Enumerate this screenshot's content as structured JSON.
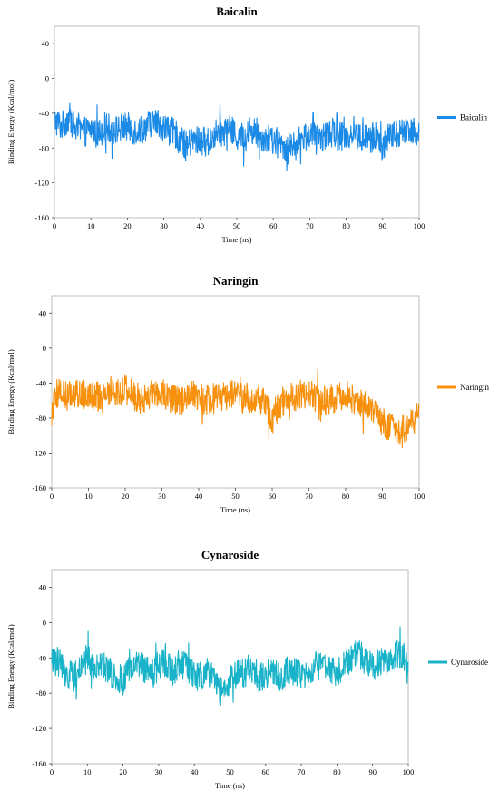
{
  "chart_data": [
    {
      "type": "line",
      "title": "Baicalin",
      "xlabel": "Time (ns)",
      "ylabel": "Binding Energy (Kcal/mol)",
      "xlim": [
        0,
        100
      ],
      "ylim": [
        -160,
        60
      ],
      "x_ticks": [
        "0",
        "10",
        "20",
        "30",
        "40",
        "50",
        "60",
        "70",
        "80",
        "90",
        "100"
      ],
      "y_ticks": [
        "40",
        "0",
        "-40",
        "-80",
        "-120",
        "-160"
      ],
      "grid": false,
      "legend_position": "right",
      "color": "#1a8ae6",
      "series": [
        {
          "name": "Baicalin",
          "x": [
            0,
            2,
            4,
            6,
            8,
            10,
            12,
            14,
            16,
            18,
            20,
            22,
            24,
            26,
            28,
            30,
            32,
            34,
            36,
            38,
            40,
            42,
            44,
            46,
            48,
            50,
            52,
            54,
            56,
            58,
            60,
            62,
            64,
            66,
            68,
            70,
            72,
            74,
            76,
            78,
            80,
            82,
            84,
            86,
            88,
            90,
            92,
            94,
            96,
            98,
            100
          ],
          "values": [
            -48,
            -55,
            -44,
            -60,
            -62,
            -58,
            -64,
            -55,
            -60,
            -57,
            -56,
            -60,
            -58,
            -52,
            -50,
            -56,
            -61,
            -66,
            -78,
            -72,
            -70,
            -74,
            -64,
            -62,
            -58,
            -66,
            -68,
            -60,
            -64,
            -70,
            -72,
            -76,
            -80,
            -78,
            -68,
            -64,
            -70,
            -66,
            -62,
            -66,
            -66,
            -64,
            -68,
            -70,
            -66,
            -78,
            -66,
            -64,
            -60,
            -58,
            -62
          ]
        }
      ]
    },
    {
      "type": "line",
      "title": "Naringin",
      "xlabel": "Time (ns)",
      "ylabel": "Binding Energy (Kcal/mol)",
      "xlim": [
        0,
        100
      ],
      "ylim": [
        -160,
        60
      ],
      "x_ticks": [
        "0",
        "10",
        "20",
        "30",
        "40",
        "50",
        "60",
        "70",
        "80",
        "90",
        "100"
      ],
      "y_ticks": [
        "40",
        "0",
        "-40",
        "-80",
        "-120",
        "-160"
      ],
      "grid": false,
      "legend_position": "right",
      "color": "#f7900d",
      "series": [
        {
          "name": "Naringin",
          "x": [
            0,
            2,
            4,
            6,
            8,
            10,
            12,
            14,
            16,
            18,
            20,
            22,
            24,
            26,
            28,
            30,
            32,
            34,
            36,
            38,
            40,
            42,
            44,
            46,
            48,
            50,
            52,
            54,
            56,
            58,
            60,
            62,
            64,
            66,
            68,
            70,
            72,
            74,
            76,
            78,
            80,
            82,
            84,
            86,
            88,
            90,
            92,
            94,
            96,
            98,
            100
          ],
          "values": [
            -72,
            -50,
            -56,
            -52,
            -54,
            -50,
            -56,
            -54,
            -48,
            -50,
            -46,
            -54,
            -58,
            -56,
            -52,
            -50,
            -56,
            -60,
            -62,
            -54,
            -56,
            -60,
            -58,
            -56,
            -54,
            -50,
            -58,
            -62,
            -56,
            -64,
            -82,
            -64,
            -58,
            -56,
            -52,
            -54,
            -56,
            -60,
            -58,
            -56,
            -52,
            -58,
            -62,
            -66,
            -76,
            -84,
            -90,
            -94,
            -92,
            -86,
            -70
          ]
        }
      ]
    },
    {
      "type": "line",
      "title": "Cynaroside",
      "xlabel": "Time (ns)",
      "ylabel": "Binding Energy (Kcal/mol)",
      "xlim": [
        0,
        100
      ],
      "ylim": [
        -160,
        60
      ],
      "x_ticks": [
        "0",
        "10",
        "20",
        "30",
        "40",
        "50",
        "60",
        "70",
        "80",
        "90",
        "100"
      ],
      "y_ticks": [
        "40",
        "0",
        "-40",
        "-80",
        "-120",
        "-160"
      ],
      "grid": false,
      "legend_position": "right",
      "color": "#18b3c8",
      "series": [
        {
          "name": "Cynaroside",
          "x": [
            0,
            2,
            4,
            6,
            8,
            10,
            12,
            14,
            16,
            18,
            20,
            22,
            24,
            26,
            28,
            30,
            32,
            34,
            36,
            38,
            40,
            42,
            44,
            46,
            48,
            50,
            52,
            54,
            56,
            58,
            60,
            62,
            64,
            66,
            68,
            70,
            72,
            74,
            76,
            78,
            80,
            82,
            84,
            86,
            88,
            90,
            92,
            94,
            96,
            98,
            100
          ],
          "values": [
            -40,
            -46,
            -56,
            -62,
            -50,
            -40,
            -54,
            -48,
            -56,
            -60,
            -66,
            -50,
            -46,
            -52,
            -60,
            -48,
            -44,
            -54,
            -46,
            -50,
            -62,
            -60,
            -56,
            -72,
            -80,
            -66,
            -56,
            -58,
            -50,
            -62,
            -60,
            -56,
            -64,
            -52,
            -56,
            -58,
            -62,
            -50,
            -46,
            -52,
            -56,
            -46,
            -40,
            -34,
            -44,
            -50,
            -42,
            -48,
            -38,
            -36,
            -44
          ]
        }
      ]
    }
  ]
}
